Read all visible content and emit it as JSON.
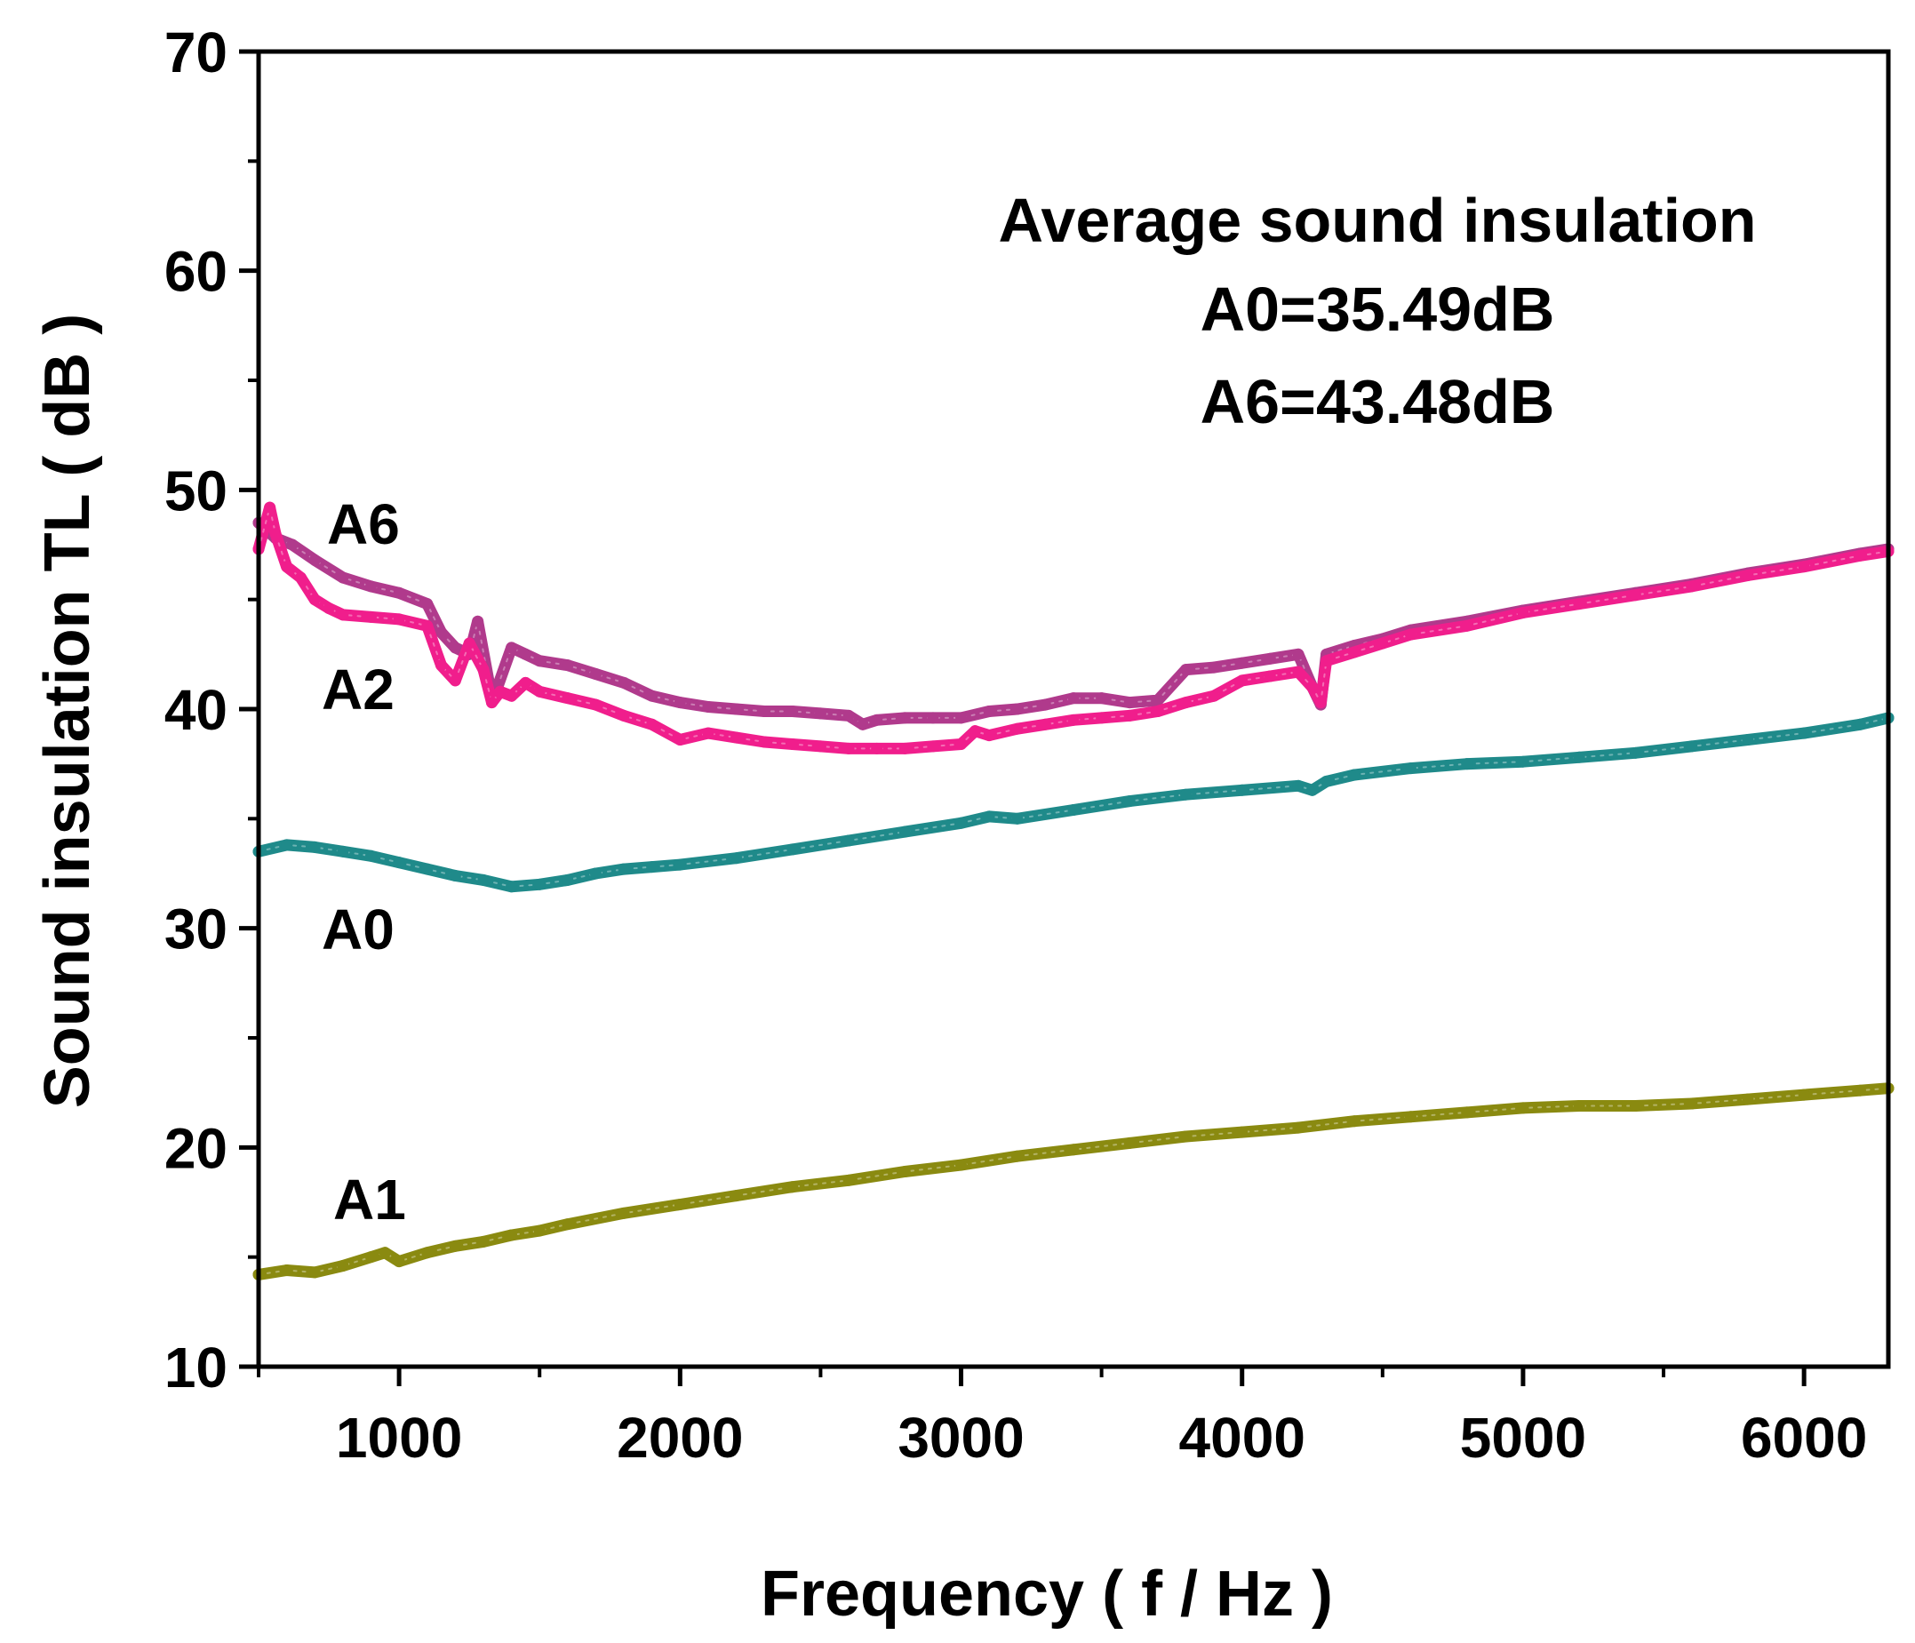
{
  "chart_data": {
    "type": "line",
    "xlabel": "Frequency ( f / Hz )",
    "ylabel": "Sound insulation TL ( dB )",
    "xlim": [
      500,
      6300
    ],
    "ylim": [
      10,
      70
    ],
    "x_ticks": [
      "1000",
      "2000",
      "3000",
      "4000",
      "5000",
      "6000"
    ],
    "x_tick_values": [
      1000,
      2000,
      3000,
      4000,
      5000,
      6000
    ],
    "y_ticks": [
      "10",
      "20",
      "30",
      "40",
      "50",
      "60",
      "70"
    ],
    "y_tick_values": [
      10,
      20,
      30,
      40,
      50,
      60,
      70
    ],
    "annotations": {
      "title": "Average sound insulation",
      "line1": "A0=35.49dB",
      "line2": "A6=43.48dB"
    },
    "series": [
      {
        "name": "A6",
        "color": "#b03a8c",
        "x": [
          500,
          560,
          620,
          700,
          800,
          900,
          1000,
          1100,
          1150,
          1200,
          1250,
          1280,
          1320,
          1350,
          1400,
          1450,
          1500,
          1600,
          1700,
          1800,
          1900,
          2000,
          2100,
          2200,
          2300,
          2400,
          2500,
          2600,
          2650,
          2700,
          2800,
          2900,
          3000,
          3100,
          3200,
          3300,
          3400,
          3500,
          3600,
          3700,
          3800,
          3900,
          4000,
          4100,
          4200,
          4250,
          4280,
          4300,
          4400,
          4500,
          4600,
          4800,
          5000,
          5200,
          5400,
          5600,
          5800,
          6000,
          6200,
          6300
        ],
        "y": [
          48.5,
          47.8,
          47.5,
          46.8,
          46.0,
          45.6,
          45.3,
          44.8,
          43.5,
          42.8,
          42.5,
          44.0,
          41.2,
          41.0,
          42.8,
          42.5,
          42.2,
          42.0,
          41.6,
          41.2,
          40.6,
          40.3,
          40.1,
          40.0,
          39.9,
          39.9,
          39.8,
          39.7,
          39.3,
          39.5,
          39.6,
          39.6,
          39.6,
          39.9,
          40.0,
          40.2,
          40.5,
          40.5,
          40.3,
          40.4,
          41.8,
          41.9,
          42.1,
          42.3,
          42.5,
          41.0,
          40.2,
          42.5,
          42.9,
          43.2,
          43.6,
          44.0,
          44.5,
          44.9,
          45.3,
          45.7,
          46.2,
          46.6,
          47.1,
          47.3
        ]
      },
      {
        "name": "A2",
        "color": "#f01e8c",
        "x": [
          500,
          540,
          560,
          600,
          650,
          700,
          750,
          800,
          900,
          1000,
          1100,
          1150,
          1200,
          1250,
          1300,
          1330,
          1360,
          1400,
          1450,
          1500,
          1600,
          1700,
          1800,
          1900,
          2000,
          2100,
          2200,
          2300,
          2400,
          2500,
          2600,
          2700,
          2800,
          2900,
          3000,
          3050,
          3100,
          3200,
          3300,
          3400,
          3500,
          3600,
          3700,
          3800,
          3900,
          4000,
          4100,
          4200,
          4250,
          4280,
          4300,
          4400,
          4500,
          4600,
          4800,
          5000,
          5200,
          5400,
          5600,
          5800,
          6000,
          6200,
          6300
        ],
        "y": [
          47.3,
          49.2,
          48.0,
          46.5,
          46.0,
          45.0,
          44.6,
          44.3,
          44.2,
          44.1,
          43.8,
          42.0,
          41.3,
          43.0,
          41.8,
          40.3,
          40.8,
          40.6,
          41.2,
          40.8,
          40.5,
          40.2,
          39.7,
          39.3,
          38.6,
          38.9,
          38.7,
          38.5,
          38.4,
          38.3,
          38.2,
          38.2,
          38.2,
          38.3,
          38.4,
          39.0,
          38.8,
          39.1,
          39.3,
          39.5,
          39.6,
          39.7,
          39.9,
          40.3,
          40.6,
          41.3,
          41.5,
          41.7,
          41.0,
          40.3,
          42.2,
          42.6,
          43.0,
          43.4,
          43.8,
          44.4,
          44.8,
          45.2,
          45.6,
          46.1,
          46.5,
          47.0,
          47.2
        ]
      },
      {
        "name": "A0",
        "color": "#1f8a8a",
        "x": [
          500,
          600,
          700,
          800,
          900,
          1000,
          1100,
          1200,
          1300,
          1400,
          1500,
          1600,
          1700,
          1800,
          1900,
          2000,
          2200,
          2400,
          2600,
          2800,
          3000,
          3100,
          3200,
          3400,
          3600,
          3800,
          4000,
          4200,
          4250,
          4300,
          4400,
          4600,
          4800,
          5000,
          5200,
          5400,
          5600,
          5800,
          6000,
          6200,
          6300
        ],
        "y": [
          33.5,
          33.8,
          33.7,
          33.5,
          33.3,
          33.0,
          32.7,
          32.4,
          32.2,
          31.9,
          32.0,
          32.2,
          32.5,
          32.7,
          32.8,
          32.9,
          33.2,
          33.6,
          34.0,
          34.4,
          34.8,
          35.1,
          35.0,
          35.4,
          35.8,
          36.1,
          36.3,
          36.5,
          36.3,
          36.7,
          37.0,
          37.3,
          37.5,
          37.6,
          37.8,
          38.0,
          38.3,
          38.6,
          38.9,
          39.3,
          39.6
        ]
      },
      {
        "name": "A1",
        "color": "#8a8a10",
        "x": [
          500,
          600,
          700,
          800,
          900,
          950,
          1000,
          1100,
          1200,
          1300,
          1400,
          1500,
          1600,
          1800,
          2000,
          2200,
          2400,
          2600,
          2800,
          3000,
          3200,
          3400,
          3600,
          3800,
          4000,
          4200,
          4400,
          4600,
          4800,
          5000,
          5200,
          5400,
          5600,
          5800,
          6000,
          6200,
          6300
        ],
        "y": [
          14.2,
          14.4,
          14.3,
          14.6,
          15.0,
          15.2,
          14.8,
          15.2,
          15.5,
          15.7,
          16.0,
          16.2,
          16.5,
          17.0,
          17.4,
          17.8,
          18.2,
          18.5,
          18.9,
          19.2,
          19.6,
          19.9,
          20.2,
          20.5,
          20.7,
          20.9,
          21.2,
          21.4,
          21.6,
          21.8,
          21.9,
          21.9,
          22.0,
          22.2,
          22.4,
          22.6,
          22.7
        ]
      }
    ],
    "series_labels": [
      "A6",
      "A2",
      "A0",
      "A1"
    ]
  }
}
